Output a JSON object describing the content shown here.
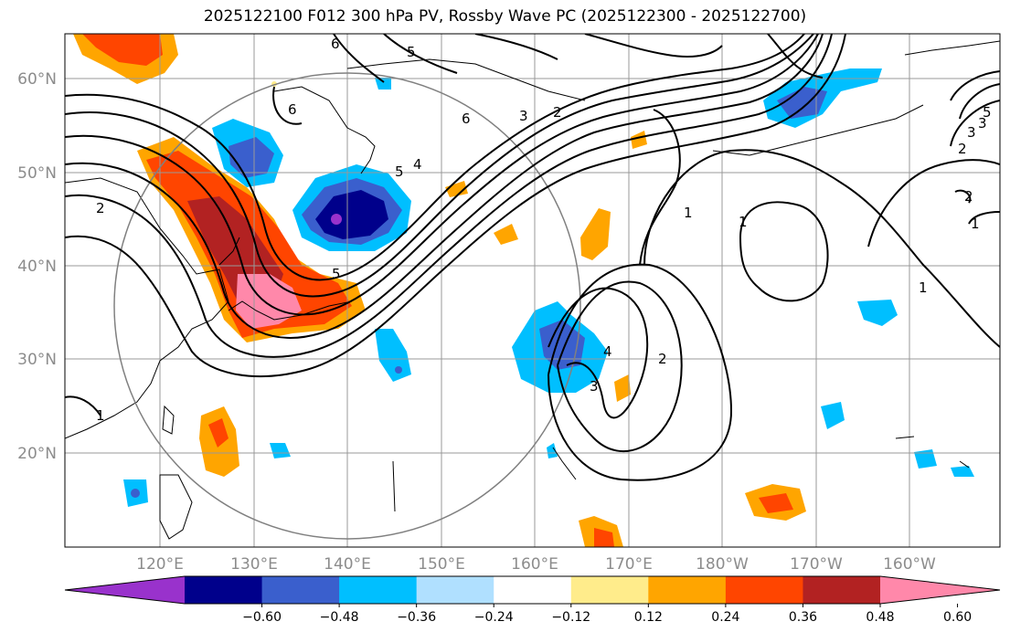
{
  "title": "2025122100 F012 300 hPa PV, Rossby Wave PC (2025122300 - 2025122700)",
  "lat_labels": [
    "60°N",
    "50°N",
    "40°N",
    "30°N",
    "20°N"
  ],
  "lon_labels": [
    "120°E",
    "130°E",
    "140°E",
    "150°E",
    "160°E",
    "170°E",
    "180°W",
    "170°W",
    "160°W"
  ],
  "colorbar": {
    "ticks": [
      "−0.60",
      "−0.48",
      "−0.36",
      "−0.24",
      "−0.12",
      "0.12",
      "0.24",
      "0.36",
      "0.48",
      "0.60"
    ],
    "colors": [
      "#9932cc",
      "#00008b",
      "#3a5fcd",
      "#00bfff",
      "#b0e0ff",
      "#ffffff",
      "#ffec8b",
      "#ffa500",
      "#ff4500",
      "#b22222",
      "#ff88aa"
    ]
  },
  "contour_labels": [
    "6",
    "5",
    "6",
    "6",
    "5",
    "4",
    "3",
    "2",
    "1",
    "1",
    "1",
    "2",
    "3",
    "4",
    "5",
    "2",
    "3",
    "2",
    "1",
    "2",
    "1",
    "5",
    "3"
  ],
  "colors": {
    "neg_purple": "#9932cc",
    "neg_navy": "#00008b",
    "neg_blue": "#3a5fcd",
    "neg_sky": "#00bfff",
    "neg_light": "#b0e0ff",
    "pos_yellow": "#ffec8b",
    "pos_orange": "#ffa500",
    "pos_red": "#ff4500",
    "pos_dark": "#b22222",
    "pos_pink": "#ff88aa",
    "grid": "#999999",
    "circle": "#808080"
  }
}
